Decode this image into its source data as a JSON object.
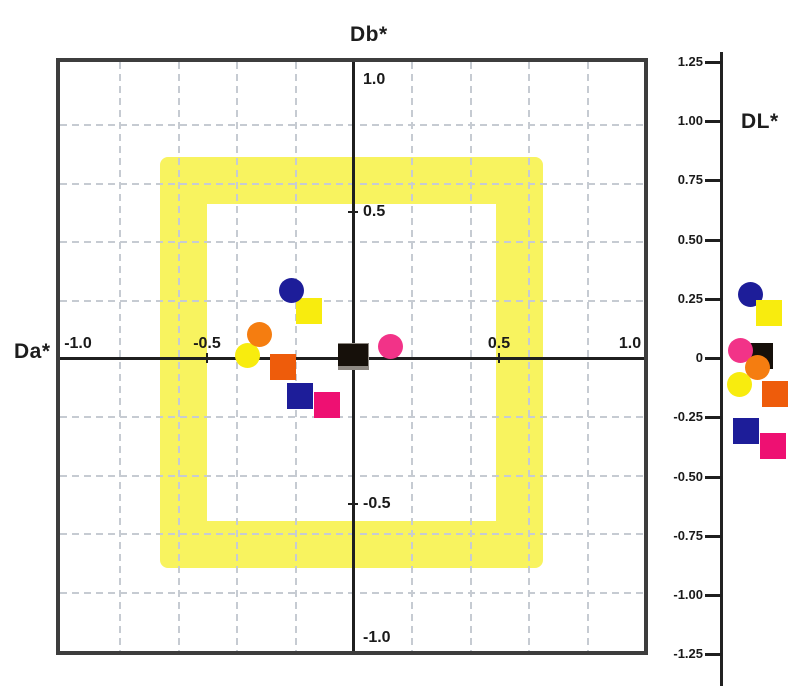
{
  "page": {
    "background": "#ffffff"
  },
  "colors": {
    "navy": "#1d1d99",
    "yellow": "#f8ec0e",
    "orange": "#f57d10",
    "orange_deep": "#ee5c0b",
    "pink": "#f23388",
    "pink_deep": "#ee1072",
    "black": "#16100a",
    "shadow_gray": "#8e8983",
    "band_yellow": "#f8f35f",
    "grid": "#c6cbd2",
    "axis": "#1f1f1f",
    "frame": "#3d3d3d",
    "text": "#1a1a1a"
  },
  "chart_data": [
    {
      "type": "scatter",
      "title": "",
      "xlabel": "Da*",
      "ylabel": "Db*",
      "xlim": [
        -1.0,
        1.0
      ],
      "ylim": [
        -1.0,
        1.0
      ],
      "grid": {
        "on": true,
        "step": 0.2,
        "style": "dashed"
      },
      "legend": "none",
      "x_ticks": [
        {
          "value": -1.0,
          "label": "-1.0"
        },
        {
          "value": -0.5,
          "label": "-0.5"
        },
        {
          "value": 0.5,
          "label": "0.5"
        },
        {
          "value": 1.0,
          "label": "1.0"
        }
      ],
      "y_ticks": [
        {
          "value": 1.0,
          "label": "1.0"
        },
        {
          "value": 0.5,
          "label": "0.5"
        },
        {
          "value": -0.5,
          "label": "-0.5"
        },
        {
          "value": -1.0,
          "label": "-1.0"
        }
      ],
      "tolerance_band": {
        "x_min": -0.66,
        "x_max": 0.65,
        "y_min": -0.72,
        "y_max": 0.69,
        "thickness": 0.16,
        "color_key": "band_yellow"
      },
      "points": [
        {
          "name": "yellow-square",
          "shape": "square",
          "color_key": "yellow",
          "x": -0.15,
          "y": 0.16
        },
        {
          "name": "navy-circle",
          "shape": "circle",
          "color_key": "navy",
          "x": -0.21,
          "y": 0.23
        },
        {
          "name": "yellow-circle",
          "shape": "circle",
          "color_key": "yellow",
          "x": -0.36,
          "y": 0.01
        },
        {
          "name": "orange-circle",
          "shape": "circle",
          "color_key": "orange",
          "x": -0.32,
          "y": 0.08
        },
        {
          "name": "orange-square",
          "shape": "square",
          "color_key": "orange_deep",
          "x": -0.24,
          "y": -0.03
        },
        {
          "name": "black-square-standard",
          "shape": "square",
          "color_key": "black",
          "x": 0.0,
          "y": 0.01,
          "shadow": true
        },
        {
          "name": "pink-circle",
          "shape": "circle",
          "color_key": "pink",
          "x": 0.13,
          "y": 0.04
        },
        {
          "name": "navy-square",
          "shape": "square",
          "color_key": "navy",
          "x": -0.18,
          "y": -0.13
        },
        {
          "name": "pink-square",
          "shape": "square",
          "color_key": "pink_deep",
          "x": -0.09,
          "y": -0.16
        }
      ]
    },
    {
      "type": "scatter_strip",
      "label": "DL*",
      "ylim": [
        -1.25,
        1.25
      ],
      "tick_step": 0.25,
      "ticks": [
        {
          "value": 1.25,
          "label": "1.25"
        },
        {
          "value": 1.0,
          "label": "1.00"
        },
        {
          "value": 0.75,
          "label": "0.75"
        },
        {
          "value": 0.5,
          "label": "0.50"
        },
        {
          "value": 0.25,
          "label": "0.25"
        },
        {
          "value": 0,
          "label": "0"
        },
        {
          "value": -0.25,
          "label": "-0.25"
        },
        {
          "value": -0.5,
          "label": "-0.50"
        },
        {
          "value": -0.75,
          "label": "-0.75"
        },
        {
          "value": -1.0,
          "label": "-1.00"
        },
        {
          "value": -1.25,
          "label": "-1.25"
        }
      ],
      "points": [
        {
          "name": "navy-circle",
          "shape": "circle",
          "color_key": "navy",
          "value": 0.27,
          "offset": 28
        },
        {
          "name": "yellow-square",
          "shape": "square",
          "color_key": "yellow",
          "value": 0.19,
          "offset": 47
        },
        {
          "name": "black-square-standard",
          "shape": "square",
          "color_key": "black",
          "value": 0.01,
          "offset": 38
        },
        {
          "name": "pink-circle",
          "shape": "circle",
          "color_key": "pink",
          "value": 0.03,
          "offset": 18
        },
        {
          "name": "orange-circle",
          "shape": "circle",
          "color_key": "orange",
          "value": -0.04,
          "offset": 35
        },
        {
          "name": "yellow-circle",
          "shape": "circle",
          "color_key": "yellow",
          "value": -0.11,
          "offset": 17
        },
        {
          "name": "orange-square",
          "shape": "square",
          "color_key": "orange_deep",
          "value": -0.15,
          "offset": 53
        },
        {
          "name": "navy-square",
          "shape": "square",
          "color_key": "navy",
          "value": -0.31,
          "offset": 24
        },
        {
          "name": "pink-square",
          "shape": "square",
          "color_key": "pink_deep",
          "value": -0.37,
          "offset": 51
        }
      ]
    }
  ]
}
